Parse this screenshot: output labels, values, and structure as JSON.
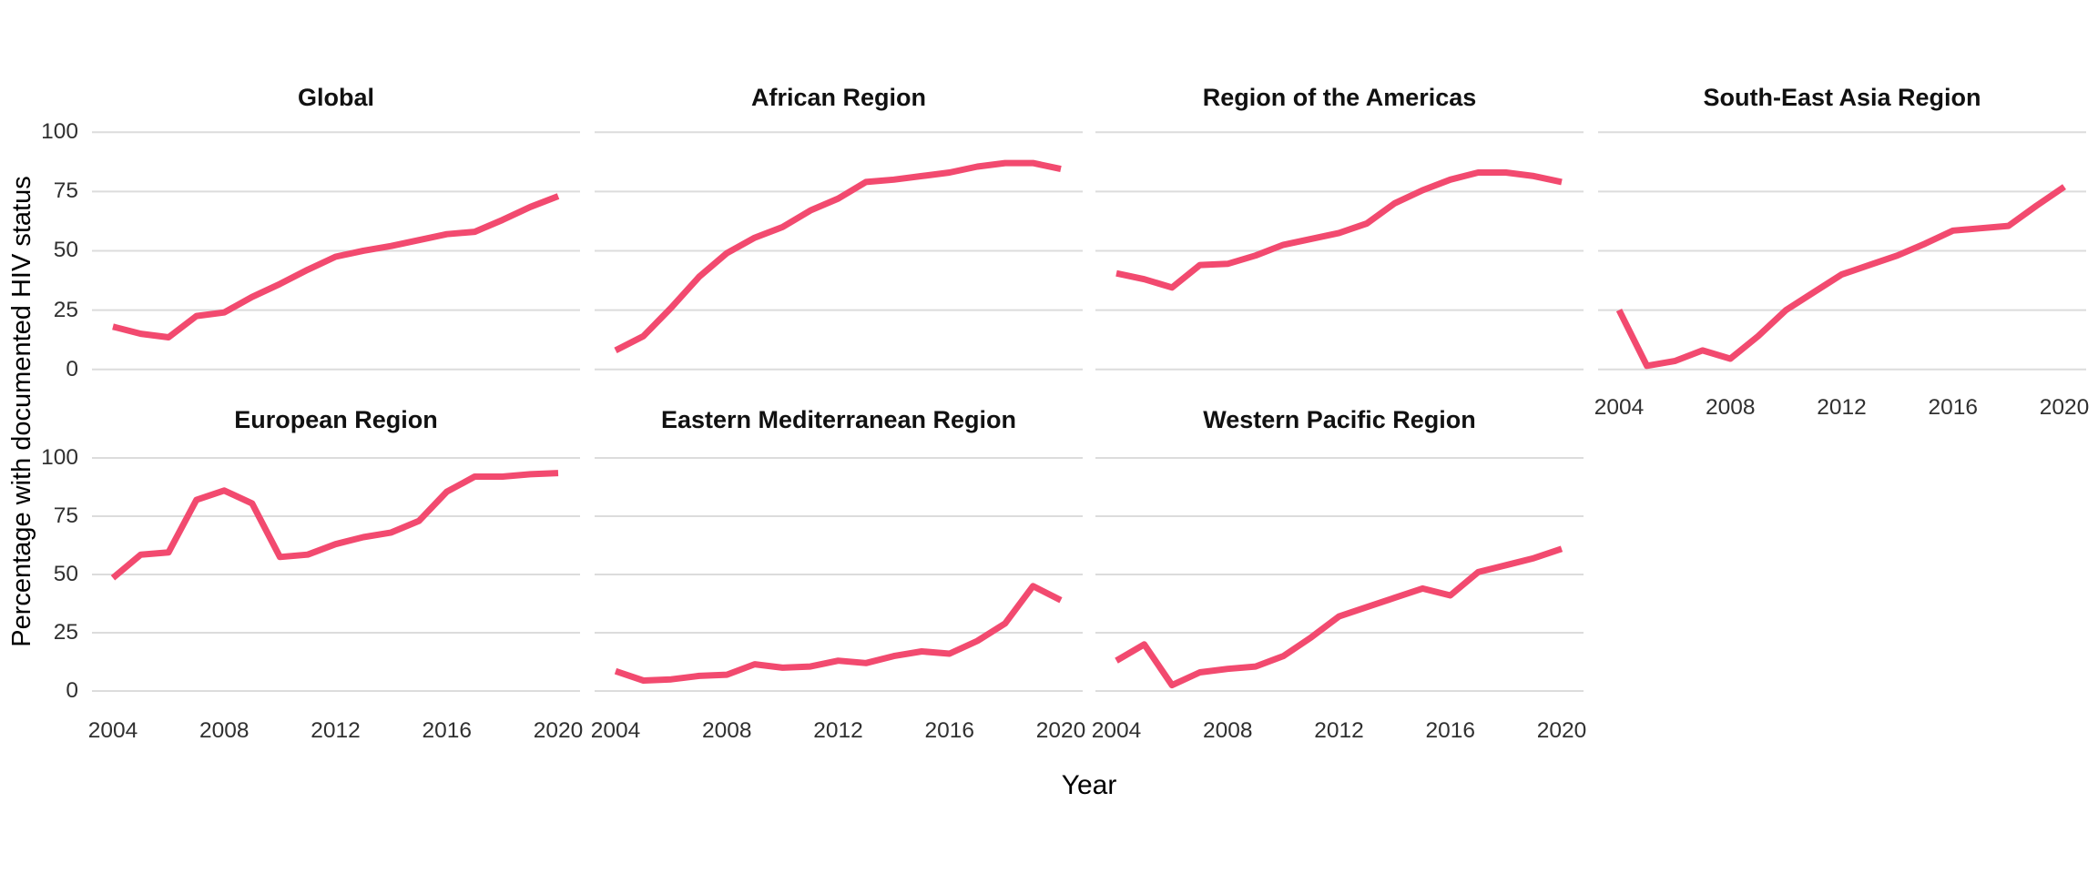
{
  "y_axis": {
    "title": "Percentage with documented HIV status",
    "ticks": [
      0,
      25,
      50,
      75,
      100
    ]
  },
  "x_axis": {
    "title": "Year",
    "ticks": [
      2004,
      2008,
      2012,
      2016,
      2020
    ]
  },
  "colors": {
    "line": "#F24A6F",
    "grid": "#DCDCDC",
    "title_text": "#111111",
    "tick_text": "#303030"
  },
  "chart_data": {
    "type": "line",
    "title": "",
    "xlabel": "Year",
    "ylabel": "Percentage with documented HIV status",
    "ylim": [
      0,
      100
    ],
    "xlim": [
      2004,
      2020
    ],
    "grid": "horizontal-only",
    "legend": "none",
    "facet_layout": "2 rows x 4 cols, 7 panels",
    "x": [
      2004,
      2005,
      2006,
      2007,
      2008,
      2009,
      2010,
      2011,
      2012,
      2013,
      2014,
      2015,
      2016,
      2017,
      2018,
      2019,
      2020
    ],
    "series": [
      {
        "name": "Global",
        "values": [
          18,
          15,
          13.5,
          22.5,
          24,
          30.5,
          36,
          42,
          47.5,
          50,
          52,
          54.5,
          57,
          58,
          63,
          68.5,
          73
        ]
      },
      {
        "name": "African Region",
        "values": [
          8,
          14,
          26,
          39,
          49,
          55.5,
          60,
          67,
          72,
          79,
          80,
          81.5,
          83,
          85.5,
          87,
          87,
          84.5
        ]
      },
      {
        "name": "Region of the Americas",
        "values": [
          40.5,
          38,
          34.5,
          44,
          44.5,
          48,
          52.5,
          55,
          57.5,
          61.5,
          70,
          75.5,
          80,
          83,
          83,
          81.5,
          79
        ]
      },
      {
        "name": "South-East Asia Region",
        "values": [
          25,
          1.5,
          3.5,
          8,
          4.5,
          14,
          25,
          32.5,
          40,
          44,
          48,
          53,
          58.5,
          59.5,
          60.5,
          69,
          77
        ]
      },
      {
        "name": "European Region",
        "values": [
          48.5,
          58.5,
          59.5,
          82,
          86,
          80.5,
          57.5,
          58.5,
          63,
          66,
          68,
          73,
          85.5,
          92,
          92,
          93,
          93.5
        ]
      },
      {
        "name": "Eastern Mediterranean Region",
        "values": [
          8.5,
          4.5,
          5,
          6.5,
          7,
          11.5,
          10,
          10.5,
          13,
          12,
          15,
          17,
          16,
          21.5,
          29,
          45,
          39
        ]
      },
      {
        "name": "Western Pacific Region",
        "values": [
          13,
          20,
          2.5,
          8,
          9.5,
          10.5,
          15,
          23,
          32,
          36,
          40,
          44,
          41,
          51,
          54,
          57,
          61
        ]
      }
    ]
  }
}
